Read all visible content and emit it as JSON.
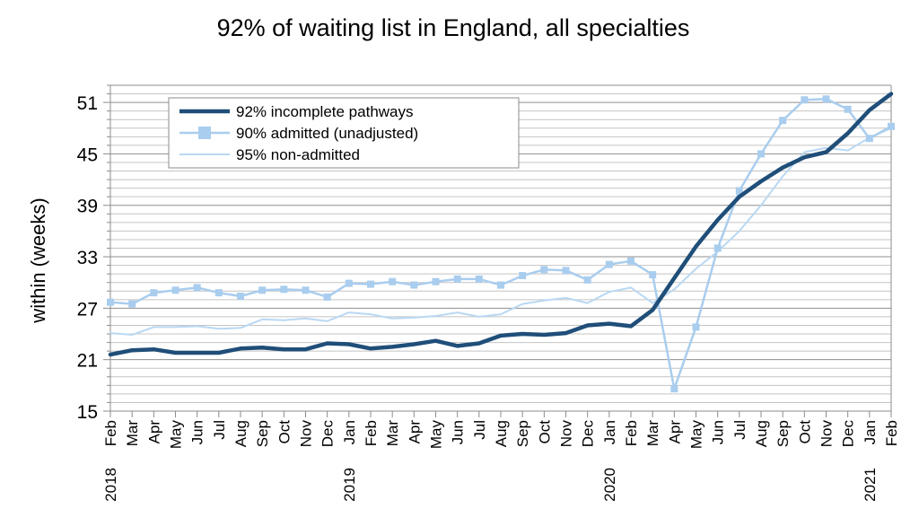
{
  "chart_data": {
    "type": "line",
    "title": "92% of waiting list in England, all specialties",
    "ylabel": "within  (weeks)",
    "xlabel": "",
    "ylim": [
      15,
      53
    ],
    "yticks": [
      15,
      21,
      27,
      33,
      39,
      45,
      51
    ],
    "grid": "horizontal",
    "legend_position": "top-left",
    "categories": [
      "Feb",
      "Mar",
      "Apr",
      "May",
      "Jun",
      "Jul",
      "Aug",
      "Sep",
      "Oct",
      "Nov",
      "Dec",
      "Jan",
      "Feb",
      "Mar",
      "Apr",
      "May",
      "Jun",
      "Jul",
      "Aug",
      "Sep",
      "Oct",
      "Nov",
      "Dec",
      "Jan",
      "Feb",
      "Mar",
      "Apr",
      "May",
      "Jun",
      "Jul",
      "Aug",
      "Sep",
      "Oct",
      "Nov",
      "Dec",
      "Jan",
      "Feb"
    ],
    "year_labels": [
      {
        "index": 0,
        "label": "2018"
      },
      {
        "index": 11,
        "label": "2019"
      },
      {
        "index": 23,
        "label": "2020"
      },
      {
        "index": 35,
        "label": "2021"
      }
    ],
    "series": [
      {
        "name": "92% incomplete pathways",
        "color": "#1f4e79",
        "style": "thick",
        "values": [
          21.6,
          22.1,
          22.2,
          21.8,
          21.8,
          21.8,
          22.3,
          22.4,
          22.2,
          22.2,
          22.9,
          22.8,
          22.3,
          22.5,
          22.8,
          23.2,
          22.6,
          22.9,
          23.8,
          24.0,
          23.9,
          24.1,
          25.0,
          25.2,
          24.9,
          26.8,
          30.5,
          34.2,
          37.3,
          40.0,
          41.8,
          43.4,
          44.6,
          45.2,
          47.4,
          50.1,
          52.0
        ]
      },
      {
        "name": "90% admitted (unadjusted)",
        "color": "#a9cdee",
        "style": "markers",
        "values": [
          27.7,
          27.5,
          28.8,
          29.1,
          29.4,
          28.8,
          28.4,
          29.1,
          29.2,
          29.1,
          28.3,
          29.9,
          29.8,
          30.1,
          29.7,
          30.1,
          30.4,
          30.4,
          29.7,
          30.8,
          31.5,
          31.4,
          30.3,
          32.1,
          32.5,
          30.9,
          17.6,
          24.8,
          34.0,
          40.7,
          45.0,
          48.9,
          51.3,
          51.4,
          50.2,
          46.8,
          48.2
        ]
      },
      {
        "name": "95% non-admitted",
        "color": "#b9d8f3",
        "style": "thin",
        "values": [
          24.1,
          23.9,
          24.8,
          24.8,
          24.9,
          24.6,
          24.7,
          25.7,
          25.6,
          25.8,
          25.5,
          26.5,
          26.3,
          25.8,
          25.9,
          26.1,
          26.5,
          26.0,
          26.3,
          27.5,
          27.9,
          28.2,
          27.6,
          28.9,
          29.4,
          27.6,
          29.2,
          31.6,
          33.6,
          36.0,
          39.0,
          42.4,
          45.2,
          45.7,
          45.4,
          46.9,
          48.0
        ]
      }
    ]
  }
}
